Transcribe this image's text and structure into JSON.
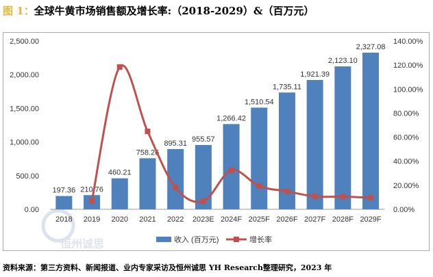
{
  "title": {
    "prefix": "图 1：",
    "text": "全球牛黄市场销售额及增长率:（2018-2029）&（百万元）"
  },
  "source": "资料来源：第三方资料、新闻报道、业内专家采访及恒州诚思 YH Research整理研究，2023 年",
  "watermark": "恒州诚思",
  "chart_data": {
    "type": "bar+line",
    "categories": [
      "2018",
      "2019",
      "2020",
      "2021",
      "2022",
      "2023E",
      "2024F",
      "2025F",
      "2026F",
      "2027F",
      "2028F",
      "2029F"
    ],
    "series": [
      {
        "name": "收入 (百万元)",
        "type": "bar",
        "axis": "left",
        "color": "#4f81bd",
        "values": [
          197.36,
          210.76,
          460.21,
          758.26,
          895.31,
          955.57,
          1266.42,
          1510.54,
          1735.11,
          1921.39,
          2123.1,
          2327.08
        ],
        "labels": [
          "197.36",
          "210.76",
          "460.21",
          "758.26",
          "895.31",
          "955.57",
          "1,266.42",
          "1,510.54",
          "1,735.11",
          "1,921.39",
          "2,123.10",
          "2,327.08"
        ]
      },
      {
        "name": "增长率",
        "type": "line",
        "axis": "right",
        "color": "#c0504d",
        "values": [
          null,
          6.8,
          118.4,
          64.8,
          18.1,
          6.7,
          32.5,
          19.3,
          14.9,
          10.7,
          10.5,
          9.6
        ]
      }
    ],
    "left_axis": {
      "ylim": [
        0,
        2500
      ],
      "ticks": [
        "0.00",
        "500.00",
        "1,000.00",
        "1,500.00",
        "2,000.00",
        "2,500.00"
      ]
    },
    "right_axis": {
      "ylim": [
        0,
        140
      ],
      "ticks": [
        "0.00%",
        "20.00%",
        "40.00%",
        "60.00%",
        "80.00%",
        "100.00%",
        "120.00%",
        "140.00%"
      ]
    },
    "legend": "bottom",
    "grid": false
  }
}
